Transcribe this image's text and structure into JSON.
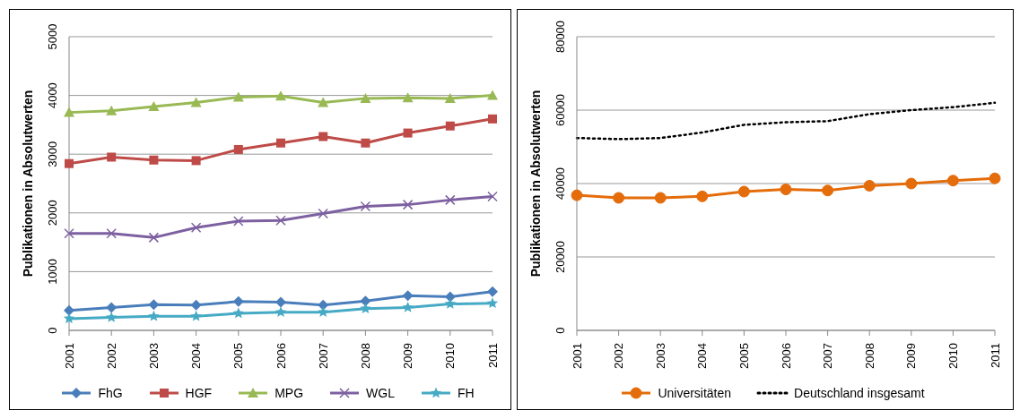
{
  "chart_data": [
    {
      "type": "line",
      "ylabel": "Publikationen in Absolutwerten",
      "categories": [
        "2001",
        "2002",
        "2003",
        "2004",
        "2005",
        "2006",
        "2007",
        "2008",
        "2009",
        "2010",
        "2011"
      ],
      "ylim": [
        0,
        5000
      ],
      "yticks": [
        0,
        1000,
        2000,
        3000,
        4000,
        5000
      ],
      "grid": "y",
      "legend": "bottom",
      "series": [
        {
          "name": "FhG",
          "color": "#4a7ebb",
          "marker": "diamond",
          "values": [
            340,
            390,
            440,
            430,
            490,
            480,
            430,
            500,
            590,
            570,
            660
          ]
        },
        {
          "name": "HGF",
          "color": "#be4b48",
          "marker": "square",
          "values": [
            2840,
            2950,
            2900,
            2890,
            3080,
            3190,
            3300,
            3190,
            3360,
            3480,
            3600
          ]
        },
        {
          "name": "MPG",
          "color": "#98b954",
          "marker": "triangle",
          "values": [
            3710,
            3740,
            3810,
            3880,
            3970,
            3990,
            3880,
            3950,
            3960,
            3950,
            4000
          ]
        },
        {
          "name": "WGL",
          "color": "#7d60a0",
          "marker": "cross",
          "values": [
            1650,
            1650,
            1580,
            1750,
            1860,
            1870,
            1990,
            2110,
            2140,
            2220,
            2280
          ]
        },
        {
          "name": "FH",
          "color": "#46aac5",
          "marker": "star",
          "values": [
            200,
            220,
            240,
            240,
            290,
            310,
            310,
            370,
            390,
            450,
            460
          ]
        }
      ]
    },
    {
      "type": "line",
      "ylabel": "Publikationen in Absolutwerten",
      "categories": [
        "2001",
        "2002",
        "2003",
        "2004",
        "2005",
        "2006",
        "2007",
        "2008",
        "2009",
        "2010",
        "2011"
      ],
      "ylim": [
        0,
        80000
      ],
      "yticks": [
        0,
        20000,
        40000,
        60000,
        80000
      ],
      "grid": "y",
      "legend": "bottom",
      "series": [
        {
          "name": "Universitäten",
          "color": "#e46c0a",
          "marker": "circle",
          "line_style": "solid",
          "values": [
            36800,
            36100,
            36100,
            36500,
            37800,
            38400,
            38100,
            39400,
            40000,
            40800,
            41400
          ]
        },
        {
          "name": "Deutschland insgesamt",
          "color": "#000000",
          "marker": "none",
          "line_style": "dotted",
          "values": [
            52400,
            52100,
            52400,
            53900,
            56000,
            56700,
            57000,
            58900,
            60000,
            60800,
            62000
          ]
        }
      ]
    }
  ]
}
